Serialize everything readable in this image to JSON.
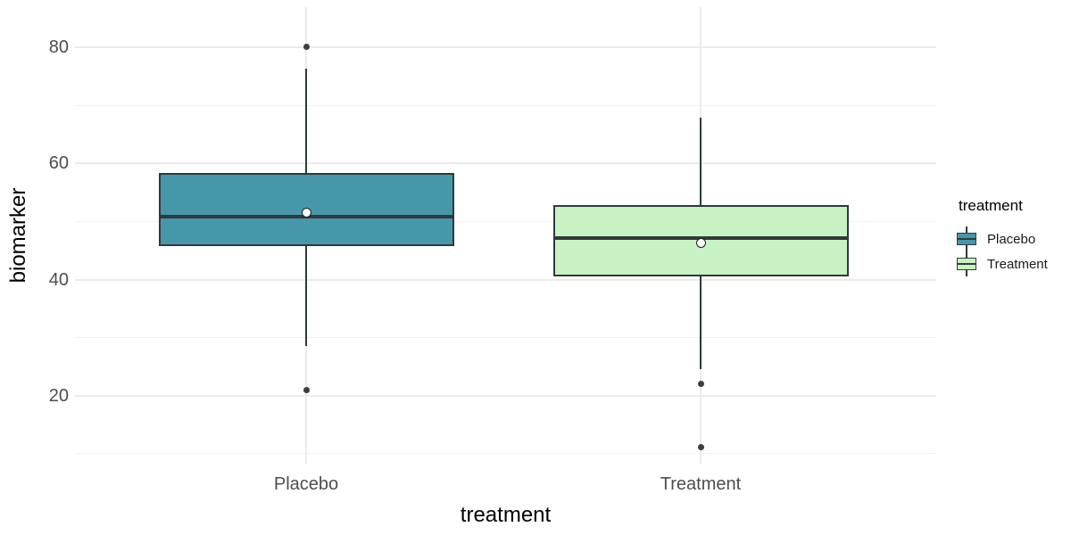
{
  "chart_data": {
    "type": "boxplot",
    "title": "",
    "xlabel": "treatment",
    "ylabel": "biomarker",
    "categories": [
      "Placebo",
      "Treatment"
    ],
    "ylim": [
      8.3,
      86.9
    ],
    "y_major_ticks": [
      20,
      40,
      60,
      80
    ],
    "y_minor_gridlines": [
      10,
      30,
      50,
      70
    ],
    "grid": "horizontal major and minor gridlines, vertical major gridline at each category; no axis lines or tick marks (white background, ggplot minimal theme)",
    "legend": {
      "title": "treatment",
      "position": "right",
      "entries": [
        {
          "label": "Placebo",
          "color": "#4598AA"
        },
        {
          "label": "Treatment",
          "color": "#C7F2C3"
        }
      ]
    },
    "series": [
      {
        "name": "Placebo",
        "fill": "#4598AA",
        "whisker_low": 28.6,
        "q1": 45.8,
        "median": 50.9,
        "q3": 58.3,
        "whisker_high": 76.3,
        "mean": 51.5,
        "outliers": [
          80,
          21
        ]
      },
      {
        "name": "Treatment",
        "fill": "#C7F2C3",
        "whisker_low": 24.6,
        "q1": 40.6,
        "median": 47.1,
        "q3": 52.8,
        "whisker_high": 67.8,
        "mean": 46.3,
        "outliers": [
          22,
          11.2
        ]
      }
    ]
  },
  "style_colors": {
    "box_outline": "#30393B",
    "whisker": "#30393B",
    "grid_major": "#EBEBEB",
    "grid_minor": "#F2F2F2",
    "tick_label": "#4D4D4D",
    "axis_title": "#000000",
    "outlier_point": "#3D3D3D",
    "mean_point_fill": "#FFFFFF",
    "mean_point_stroke": "#1F1F1F",
    "background": "#FFFFFF"
  }
}
